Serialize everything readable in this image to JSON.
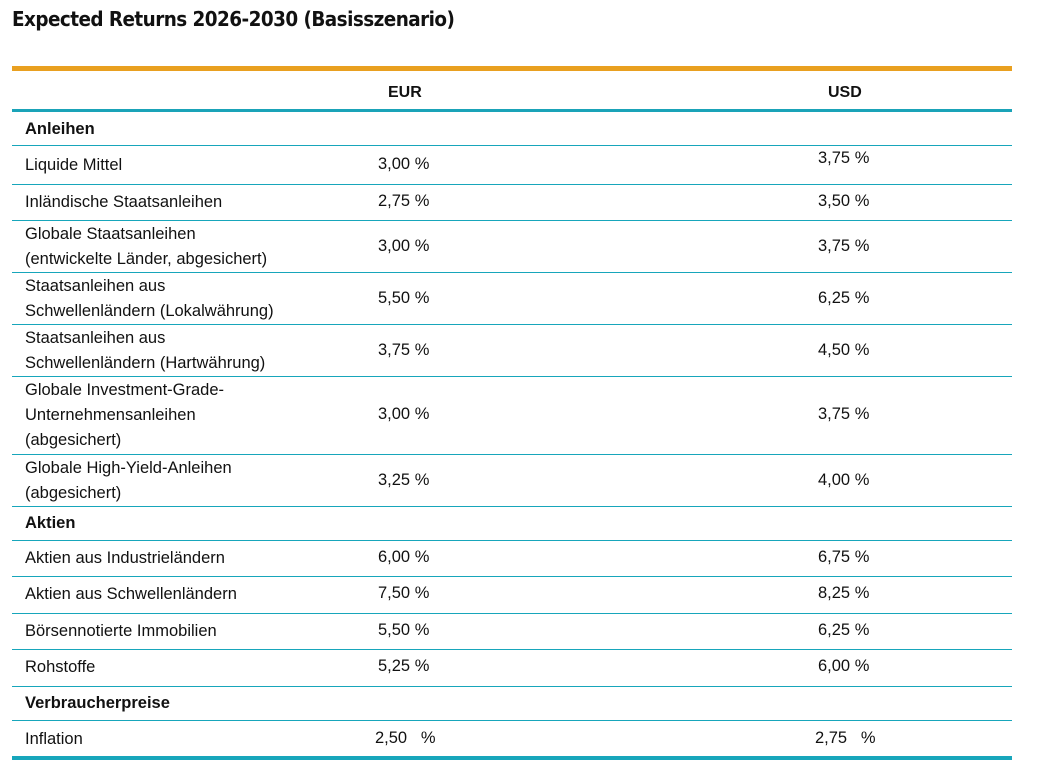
{
  "title": "Expected Returns 2026-2030 (Basisszenario)",
  "columns": {
    "eur": "EUR",
    "usd": "USD"
  },
  "sections": {
    "anleihen": "Anleihen",
    "aktien": "Aktien",
    "verbraucherpreise": "Verbraucherpreise"
  },
  "rows": [
    {
      "label": "Liquide Mittel",
      "eur": "3,00 %",
      "usd": "3,75 %"
    },
    {
      "label": "Inländische Staatsanleihen",
      "eur": "2,75 %",
      "usd": "3,50 %"
    },
    {
      "label": "Globale Staatsanleihen\n(entwickelte Länder, abgesichert)",
      "eur": "3,00 %",
      "usd": "3,75 %"
    },
    {
      "label": "Staatsanleihen aus\nSchwellenländern (Lokalwährung)",
      "eur": "5,50 %",
      "usd": "6,25 %"
    },
    {
      "label": "Staatsanleihen aus\nSchwellenländern (Hartwährung)",
      "eur": "3,75 %",
      "usd": "4,50 %"
    },
    {
      "label": "Globale Investment-Grade-\nUnternehmensanleihen\n(abgesichert)",
      "eur": "3,00 %",
      "usd": "3,75 %"
    },
    {
      "label": "Globale High-Yield-Anleihen\n(abgesichert)",
      "eur": "3,25 %",
      "usd": "4,00 %"
    },
    {
      "label": "Aktien aus Industrieländern",
      "eur": "6,00 %",
      "usd": "6,75 %"
    },
    {
      "label": "Aktien aus Schwellenländern",
      "eur": "7,50 %",
      "usd": "8,25 %"
    },
    {
      "label": "Börsennotierte Immobilien",
      "eur": "5,50 %",
      "usd": "6,25 %"
    },
    {
      "label": "Rohstoffe",
      "eur": "5,25 %",
      "usd": "6,00 %"
    },
    {
      "label": "Inflation",
      "eur": "2,50   %",
      "usd": "2,75   %"
    }
  ]
}
